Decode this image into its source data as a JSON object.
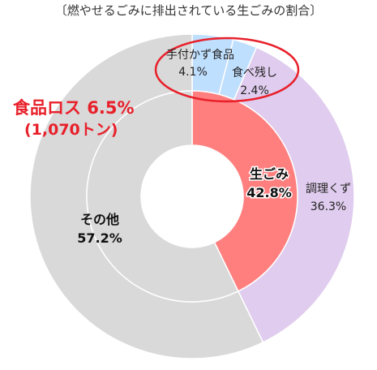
{
  "chart_data": {
    "type": "pie",
    "title": "〔燃やせるごみに排出されている生ごみの割合〕",
    "inner": {
      "slices": [
        {
          "label": "生ごみ",
          "value_text": "42.8%",
          "value": 42.8,
          "color": "#ff7f7f"
        },
        {
          "label": "その他",
          "value_text": "57.2%",
          "value": 57.2,
          "color": "#d9d9d9"
        }
      ]
    },
    "outer": {
      "slices": [
        {
          "label": "手付かず食品",
          "value_text": "4.1%",
          "value": 4.1,
          "color": "#bfdfff"
        },
        {
          "label": "食べ残し",
          "value_text": "2.4%",
          "value": 2.4,
          "color": "#bfdfff"
        },
        {
          "label": "調理くず",
          "value_text": "36.3%",
          "value": 36.3,
          "color": "#e0ccee"
        },
        {
          "label": "",
          "value_text": "",
          "value": 57.2,
          "color": "#d9d9d9"
        }
      ]
    },
    "annotation": {
      "line1": "食品ロス 6.5%",
      "line2": "(1,070トン)",
      "color": "#e8202a"
    },
    "highlight_color": "#e8202a"
  }
}
